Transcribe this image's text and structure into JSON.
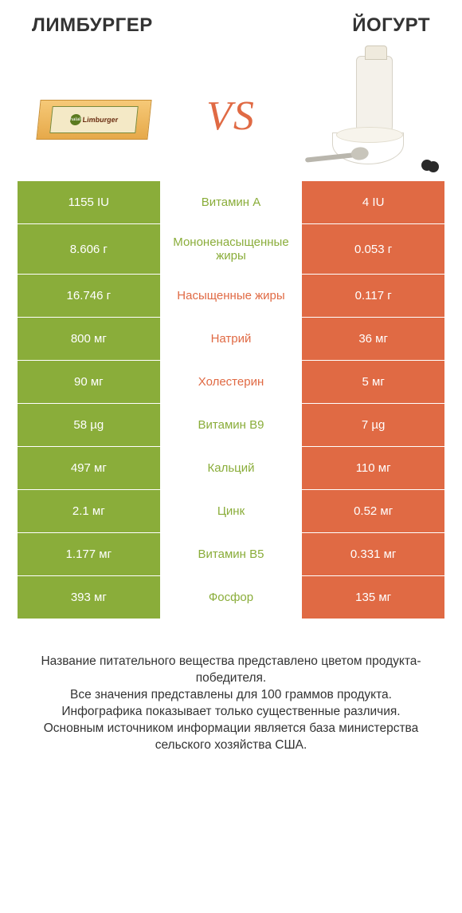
{
  "header": {
    "left_title": "ЛИМБУРГЕР",
    "right_title": "ЙОГУРТ"
  },
  "hero": {
    "vs_text": "VS",
    "cheese_brand": "halali",
    "cheese_name": "Limburger"
  },
  "colors": {
    "left_bg": "#8aad3a",
    "right_bg": "#e06a44",
    "mid_green": "#8aad3a",
    "mid_orange": "#e06a44",
    "text_white": "#ffffff"
  },
  "table": {
    "row_min_height": 54,
    "rows": [
      {
        "left": "1155 IU",
        "label": "Витамин A",
        "right": "4 IU",
        "label_color": "green"
      },
      {
        "left": "8.606 г",
        "label": "Мононенасыщенные жиры",
        "right": "0.053 г",
        "label_color": "green"
      },
      {
        "left": "16.746 г",
        "label": "Насыщенные жиры",
        "right": "0.117 г",
        "label_color": "orange"
      },
      {
        "left": "800 мг",
        "label": "Натрий",
        "right": "36 мг",
        "label_color": "orange"
      },
      {
        "left": "90 мг",
        "label": "Холестерин",
        "right": "5 мг",
        "label_color": "orange"
      },
      {
        "left": "58 µg",
        "label": "Витамин B9",
        "right": "7 µg",
        "label_color": "green"
      },
      {
        "left": "497 мг",
        "label": "Кальций",
        "right": "110 мг",
        "label_color": "green"
      },
      {
        "left": "2.1 мг",
        "label": "Цинк",
        "right": "0.52 мг",
        "label_color": "green"
      },
      {
        "left": "1.177 мг",
        "label": "Витамин B5",
        "right": "0.331 мг",
        "label_color": "green"
      },
      {
        "left": "393 мг",
        "label": "Фосфор",
        "right": "135 мг",
        "label_color": "green"
      }
    ]
  },
  "footer": {
    "lines": [
      "Название питательного вещества представлено цветом продукта-победителя.",
      "Все значения представлены для 100 граммов продукта.",
      "Инфографика показывает только существенные различия.",
      "Основным источником информации является база министерства сельского хозяйства США."
    ]
  }
}
